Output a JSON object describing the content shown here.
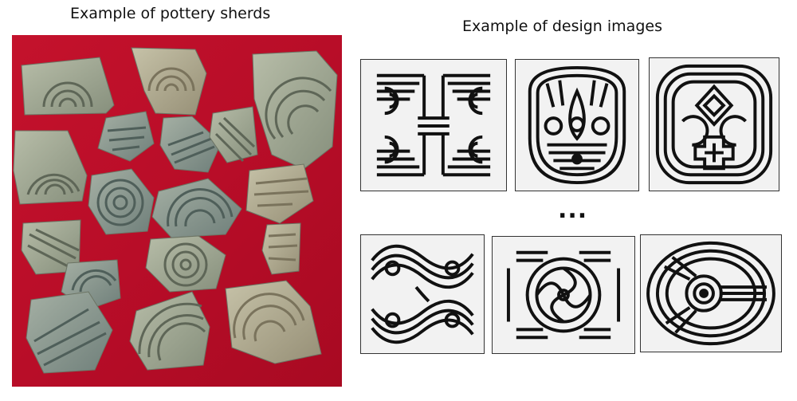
{
  "captions": {
    "left": "Example of pottery sherds",
    "right": "Example of design images"
  },
  "ellipsis": "...",
  "colors": {
    "cloth": "#c8102e",
    "sherd": "#9aa38f",
    "line": "#111111",
    "panel_bg": "#f2f2f2"
  }
}
